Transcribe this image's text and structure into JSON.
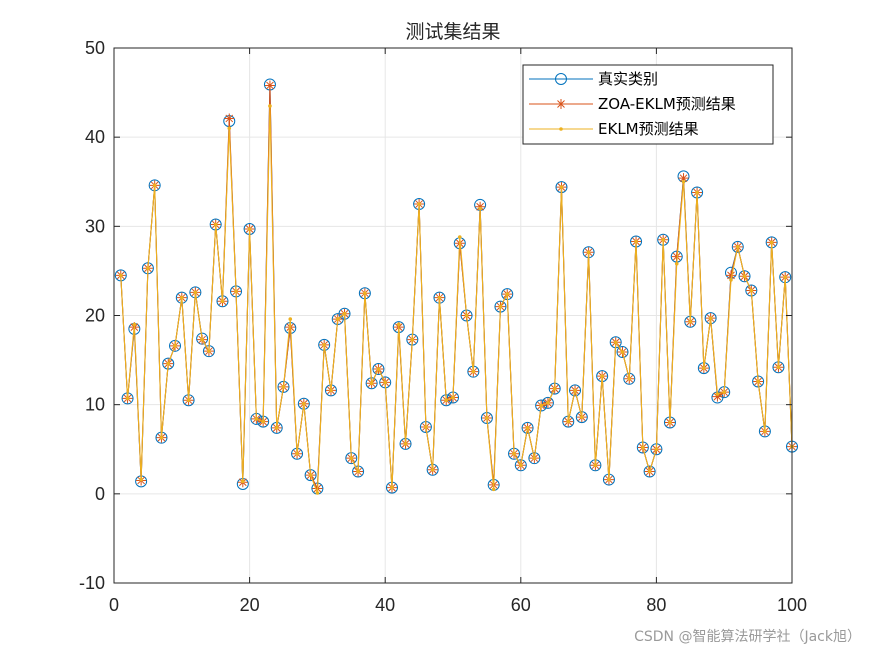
{
  "chart_data": {
    "type": "line",
    "title": "测试集结果",
    "xlabel": "",
    "ylabel": "",
    "xlim": [
      0,
      100
    ],
    "ylim": [
      -10,
      50
    ],
    "xticks": [
      0,
      20,
      40,
      60,
      80,
      100
    ],
    "yticks": [
      -10,
      0,
      10,
      20,
      30,
      40,
      50
    ],
    "grid": true,
    "legend_position": "top-right",
    "colors": {
      "true": "#0072BD",
      "zoa": "#D95319",
      "eklm": "#EDB120",
      "grid": "#e6e6e6",
      "axis": "#262626"
    },
    "x": [
      1,
      2,
      3,
      4,
      5,
      6,
      7,
      8,
      9,
      10,
      11,
      12,
      13,
      14,
      15,
      16,
      17,
      18,
      19,
      20,
      21,
      22,
      23,
      24,
      25,
      26,
      27,
      28,
      29,
      30,
      31,
      32,
      33,
      34,
      35,
      36,
      37,
      38,
      39,
      40,
      41,
      42,
      43,
      44,
      45,
      46,
      47,
      48,
      49,
      50,
      51,
      52,
      53,
      54,
      55,
      56,
      57,
      58,
      59,
      60,
      61,
      62,
      63,
      64,
      65,
      66,
      67,
      68,
      69,
      70,
      71,
      72,
      73,
      74,
      75,
      76,
      77,
      78,
      79,
      80,
      81,
      82,
      83,
      84,
      85,
      86,
      87,
      88,
      89,
      90,
      91,
      92,
      93,
      94,
      95,
      96,
      97,
      98,
      99,
      100
    ],
    "series": [
      {
        "name": "真实类别",
        "marker": "circle",
        "color": "#0072BD",
        "values": [
          24.5,
          10.7,
          18.5,
          1.4,
          25.3,
          34.6,
          6.3,
          14.6,
          16.6,
          22.0,
          10.5,
          22.6,
          17.4,
          16.0,
          30.2,
          21.6,
          41.8,
          22.7,
          1.1,
          29.7,
          8.4,
          8.1,
          45.9,
          7.4,
          12.0,
          18.6,
          4.5,
          10.1,
          2.1,
          0.6,
          16.7,
          11.6,
          19.6,
          20.2,
          4.0,
          2.5,
          22.5,
          12.4,
          14.0,
          12.5,
          0.7,
          18.7,
          5.6,
          17.3,
          32.5,
          7.5,
          2.7,
          22.0,
          10.5,
          10.8,
          28.1,
          20.0,
          13.7,
          32.4,
          8.5,
          1.0,
          21.0,
          22.4,
          4.5,
          3.2,
          7.4,
          4.0,
          9.9,
          10.2,
          11.8,
          34.4,
          8.1,
          11.6,
          8.6,
          27.1,
          3.2,
          13.2,
          1.6,
          17.0,
          15.9,
          12.9,
          28.3,
          5.2,
          2.5,
          5.0,
          28.5,
          8.0,
          26.6,
          35.6,
          19.3,
          33.8,
          14.1,
          19.7,
          10.8,
          11.4,
          24.8,
          27.7,
          24.4,
          22.8,
          12.6,
          7.0,
          28.2,
          14.2,
          24.3,
          5.3
        ]
      },
      {
        "name": "ZOA-EKLM预测结果",
        "marker": "star",
        "color": "#D95319",
        "values": [
          24.5,
          10.7,
          18.7,
          1.5,
          25.3,
          34.6,
          6.3,
          14.6,
          16.6,
          22.0,
          10.5,
          22.6,
          17.3,
          16.0,
          30.2,
          21.6,
          42.1,
          22.7,
          1.3,
          29.7,
          8.4,
          8.1,
          45.8,
          7.4,
          12.0,
          18.7,
          4.5,
          10.1,
          2.1,
          0.6,
          16.7,
          11.6,
          19.6,
          20.2,
          4.0,
          2.5,
          22.5,
          12.4,
          14.0,
          12.5,
          0.7,
          18.7,
          5.6,
          17.3,
          32.5,
          7.5,
          2.7,
          22.0,
          10.5,
          10.8,
          28.1,
          20.0,
          13.7,
          32.2,
          8.5,
          1.0,
          21.0,
          22.4,
          4.5,
          3.2,
          7.4,
          4.0,
          9.9,
          10.2,
          11.8,
          34.4,
          8.1,
          11.6,
          8.6,
          27.1,
          3.2,
          13.2,
          1.6,
          17.0,
          15.9,
          12.9,
          28.3,
          5.2,
          2.5,
          5.0,
          28.5,
          8.0,
          26.6,
          35.4,
          19.3,
          33.8,
          14.1,
          19.7,
          10.9,
          11.4,
          24.5,
          27.7,
          24.4,
          22.8,
          12.6,
          7.0,
          28.2,
          14.2,
          24.3,
          5.3
        ]
      },
      {
        "name": "EKLM预测结果",
        "marker": "dot",
        "color": "#EDB120",
        "values": [
          24.5,
          10.7,
          19.0,
          1.6,
          25.3,
          34.6,
          6.3,
          14.6,
          16.6,
          22.0,
          10.5,
          22.6,
          17.3,
          16.0,
          30.2,
          21.6,
          41.0,
          22.7,
          1.4,
          29.7,
          8.4,
          8.1,
          43.5,
          7.4,
          12.0,
          19.6,
          4.5,
          10.1,
          2.1,
          0.1,
          16.7,
          11.6,
          19.6,
          20.2,
          4.0,
          2.5,
          22.5,
          12.4,
          14.0,
          12.5,
          0.7,
          19.0,
          5.6,
          17.3,
          32.5,
          7.5,
          2.7,
          22.0,
          10.5,
          10.8,
          28.8,
          20.0,
          13.7,
          32.0,
          8.5,
          0.5,
          21.0,
          22.4,
          4.5,
          3.2,
          7.4,
          4.0,
          9.9,
          10.2,
          11.8,
          34.4,
          8.1,
          11.6,
          8.6,
          27.1,
          3.2,
          13.2,
          1.6,
          17.0,
          15.9,
          12.9,
          28.3,
          5.2,
          2.5,
          5.0,
          28.5,
          8.0,
          25.8,
          35.0,
          19.3,
          33.8,
          14.1,
          19.7,
          11.2,
          11.4,
          24.0,
          27.7,
          24.4,
          22.8,
          12.6,
          7.0,
          28.2,
          14.2,
          24.3,
          5.3
        ]
      }
    ]
  },
  "watermark": "CSDN @智能算法研学社（Jack旭）"
}
